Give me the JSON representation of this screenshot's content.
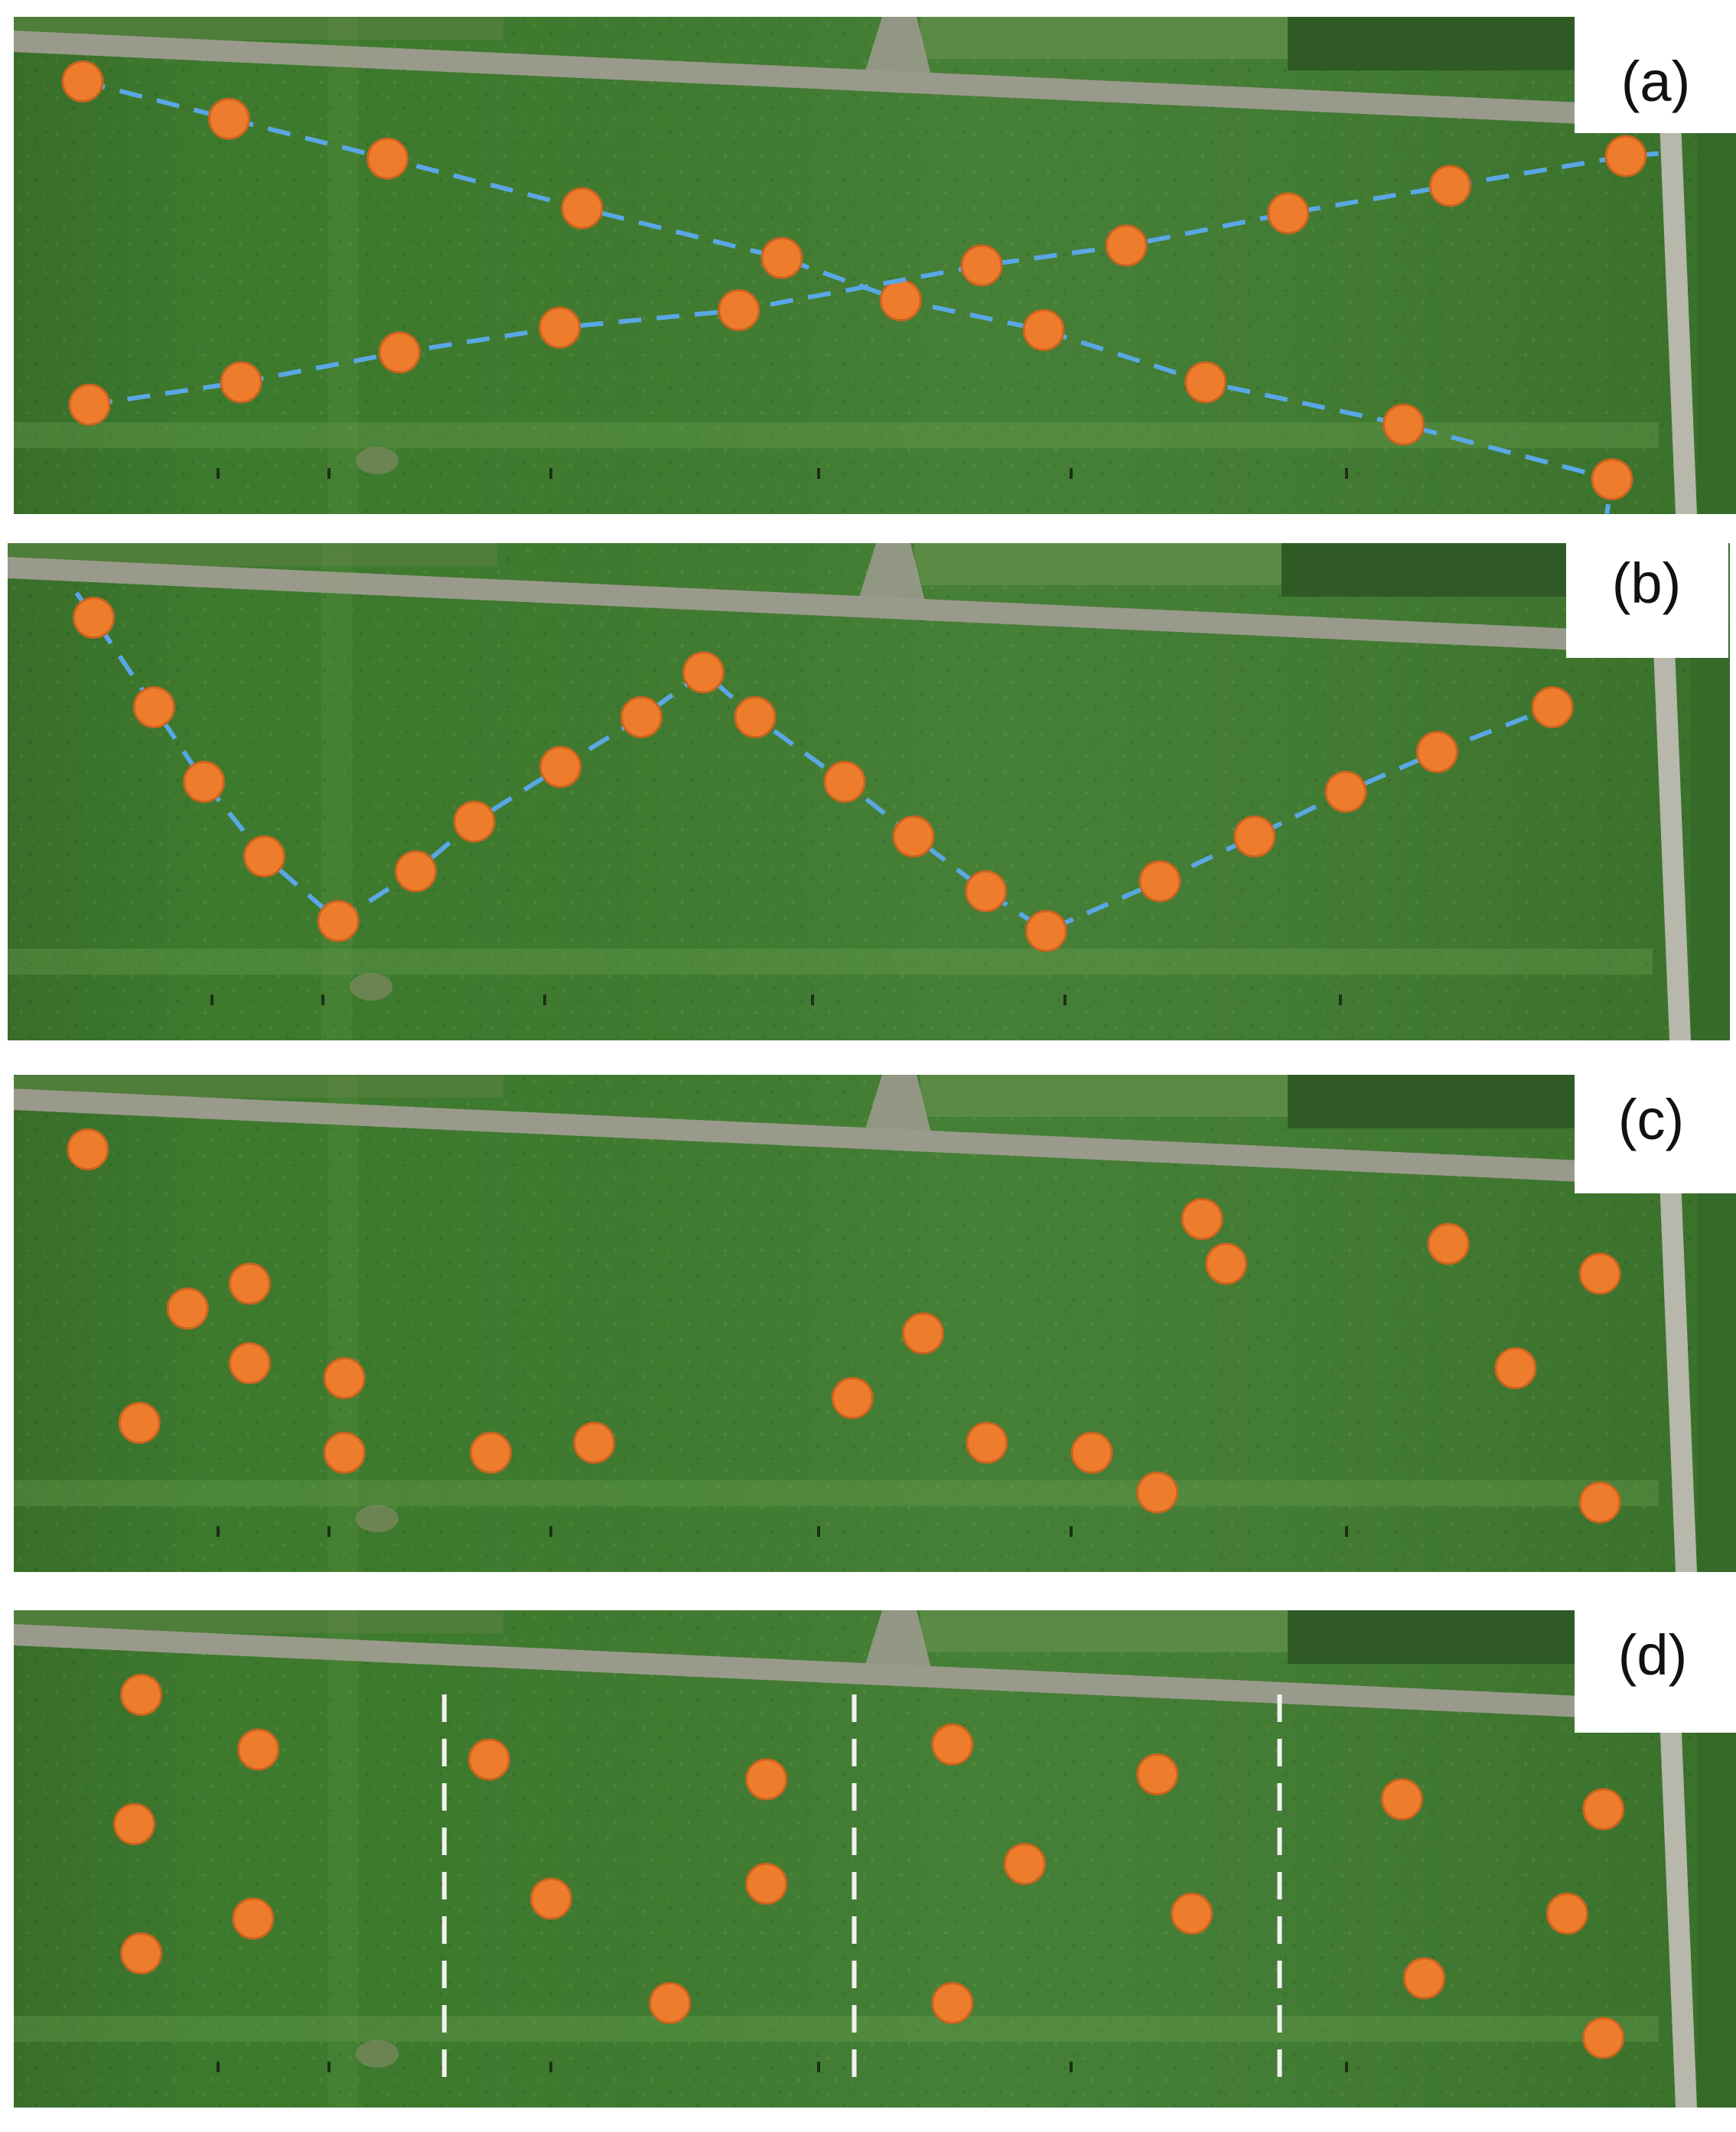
{
  "panels": [
    {
      "label": "(a)",
      "pattern": "crossing-transects",
      "connector": "dashed-line",
      "paths": [
        [
          [
            0.04,
            0.13
          ],
          [
            0.125,
            0.205
          ],
          [
            0.217,
            0.285
          ],
          [
            0.33,
            0.385
          ],
          [
            0.446,
            0.485
          ],
          [
            0.515,
            0.57
          ],
          [
            0.598,
            0.63
          ],
          [
            0.692,
            0.735
          ],
          [
            0.807,
            0.82
          ],
          [
            0.928,
            0.93
          ]
        ],
        [
          [
            0.044,
            0.78
          ],
          [
            0.132,
            0.735
          ],
          [
            0.224,
            0.675
          ],
          [
            0.317,
            0.625
          ],
          [
            0.421,
            0.59
          ],
          [
            0.562,
            0.5
          ],
          [
            0.646,
            0.46
          ],
          [
            0.74,
            0.395
          ],
          [
            0.834,
            0.34
          ],
          [
            0.936,
            0.28
          ]
        ]
      ],
      "line_ends": [
        [
          [
            0.925,
            1.0
          ]
        ],
        [
          [
            0.955,
            0.275
          ]
        ]
      ]
    },
    {
      "label": "(b)",
      "pattern": "w-transect",
      "connector": "dashed-line",
      "paths": [
        [
          [
            0.05,
            0.15
          ],
          [
            0.085,
            0.33
          ],
          [
            0.114,
            0.48
          ],
          [
            0.149,
            0.63
          ],
          [
            0.192,
            0.76
          ],
          [
            0.237,
            0.66
          ],
          [
            0.271,
            0.56
          ],
          [
            0.321,
            0.45
          ],
          [
            0.368,
            0.35
          ],
          [
            0.404,
            0.26
          ],
          [
            0.434,
            0.35
          ],
          [
            0.486,
            0.48
          ],
          [
            0.526,
            0.59
          ],
          [
            0.568,
            0.7
          ],
          [
            0.603,
            0.78
          ],
          [
            0.669,
            0.68
          ],
          [
            0.724,
            0.59
          ],
          [
            0.777,
            0.5
          ],
          [
            0.83,
            0.42
          ],
          [
            0.897,
            0.33
          ]
        ]
      ],
      "line_ends": [
        [
          [
            0.04,
            0.1
          ]
        ]
      ]
    },
    {
      "label": "(c)",
      "pattern": "random",
      "connector": "none",
      "points": [
        [
          0.043,
          0.15
        ],
        [
          0.101,
          0.47
        ],
        [
          0.137,
          0.42
        ],
        [
          0.137,
          0.58
        ],
        [
          0.073,
          0.7
        ],
        [
          0.192,
          0.61
        ],
        [
          0.192,
          0.76
        ],
        [
          0.277,
          0.76
        ],
        [
          0.337,
          0.74
        ],
        [
          0.487,
          0.65
        ],
        [
          0.528,
          0.52
        ],
        [
          0.565,
          0.74
        ],
        [
          0.626,
          0.76
        ],
        [
          0.664,
          0.84
        ],
        [
          0.69,
          0.29
        ],
        [
          0.704,
          0.38
        ],
        [
          0.833,
          0.34
        ],
        [
          0.872,
          0.59
        ],
        [
          0.921,
          0.4
        ],
        [
          0.921,
          0.86
        ]
      ]
    },
    {
      "label": "(d)",
      "pattern": "stratified",
      "connector": "dashed-divider",
      "dividers": [
        0.25,
        0.488,
        0.735
      ],
      "points": [
        [
          0.074,
          0.17
        ],
        [
          0.07,
          0.43
        ],
        [
          0.074,
          0.69
        ],
        [
          0.142,
          0.28
        ],
        [
          0.139,
          0.62
        ],
        [
          0.276,
          0.3
        ],
        [
          0.312,
          0.58
        ],
        [
          0.381,
          0.79
        ],
        [
          0.437,
          0.34
        ],
        [
          0.437,
          0.55
        ],
        [
          0.545,
          0.27
        ],
        [
          0.587,
          0.51
        ],
        [
          0.545,
          0.79
        ],
        [
          0.664,
          0.33
        ],
        [
          0.684,
          0.61
        ],
        [
          0.806,
          0.38
        ],
        [
          0.819,
          0.74
        ],
        [
          0.923,
          0.4
        ],
        [
          0.902,
          0.61
        ],
        [
          0.923,
          0.86
        ]
      ]
    }
  ],
  "colors": {
    "marker_fill": "#ee7c2d",
    "marker_stroke": "#c9641f",
    "transect_line": "#5aa7e6",
    "divider_line": "#f2f2f2",
    "field_green": "#3e7a2e",
    "field_dark": "#335f26",
    "road": "#9a9a8c",
    "background": "#ffffff"
  }
}
